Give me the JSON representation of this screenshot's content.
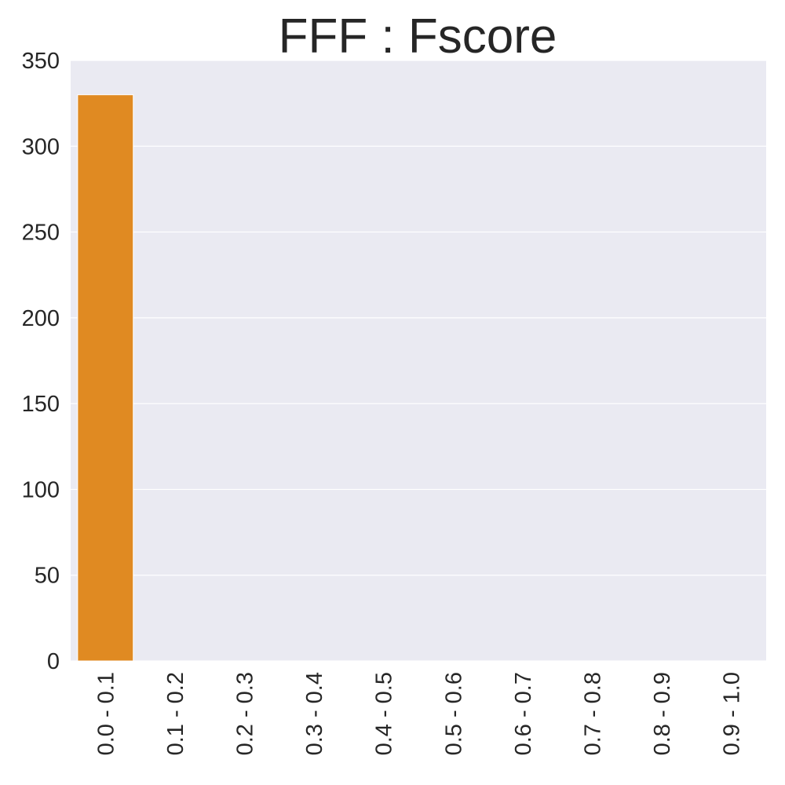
{
  "chart_data": {
    "type": "bar",
    "title": "FFF : Fscore",
    "xlabel": "",
    "ylabel": "",
    "categories": [
      "0.0 - 0.1",
      "0.1 - 0.2",
      "0.2 - 0.3",
      "0.3 - 0.4",
      "0.4 - 0.5",
      "0.5 - 0.6",
      "0.6 - 0.7",
      "0.7 - 0.8",
      "0.8 - 0.9",
      "0.9 - 1.0"
    ],
    "values": [
      330,
      0,
      0,
      0,
      0,
      0,
      0,
      0,
      0,
      0
    ],
    "ylim": [
      0,
      350
    ],
    "yticks": [
      "0",
      "50",
      "100",
      "150",
      "200",
      "250",
      "300",
      "350"
    ],
    "grid": true,
    "legend": "none",
    "colors": {
      "bar": "#e08a22",
      "plot_background": "#eaeaf2",
      "grid": "#ffffff",
      "text": "#262626"
    }
  }
}
